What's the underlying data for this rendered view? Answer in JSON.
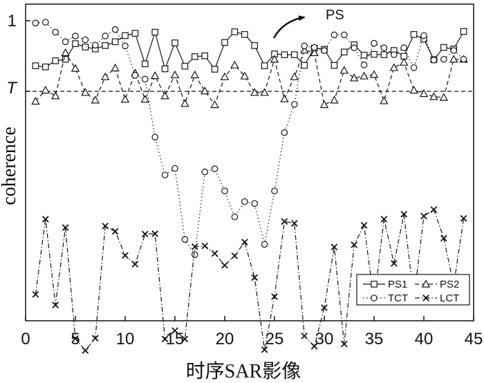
{
  "chart_data": {
    "type": "line",
    "xlabel": "时序SAR影像",
    "ylabel": "coherence",
    "xlim": [
      0,
      45
    ],
    "xticks": [
      0,
      5,
      10,
      15,
      20,
      25,
      30,
      35,
      40,
      45
    ],
    "ytick_labels": {
      "one": "1",
      "threshold": "T"
    },
    "threshold": 0.815,
    "grid": false,
    "legend_position": "bottom-right",
    "annotation": {
      "text": "PS"
    },
    "series": [
      {
        "name": "PS1",
        "marker": "square",
        "linestyle": "solid",
        "x": [
          1,
          2,
          3,
          4,
          5,
          6,
          7,
          8,
          9,
          10,
          11,
          12,
          13,
          14,
          15,
          16,
          17,
          18,
          19,
          20,
          21,
          22,
          23,
          24,
          25,
          26,
          27,
          28,
          29,
          30,
          31,
          32,
          33,
          34,
          35,
          36,
          37,
          38,
          39,
          40,
          41,
          42,
          43,
          44
        ],
        "y": [
          0.882,
          0.879,
          0.895,
          0.899,
          0.94,
          0.931,
          0.926,
          0.935,
          0.945,
          0.961,
          0.967,
          0.887,
          0.97,
          0.874,
          0.942,
          0.881,
          0.906,
          0.908,
          0.873,
          0.943,
          0.971,
          0.964,
          0.935,
          0.882,
          0.913,
          0.911,
          0.911,
          0.883,
          0.928,
          0.925,
          0.883,
          0.918,
          0.937,
          0.91,
          0.912,
          0.911,
          0.922,
          0.907,
          0.964,
          0.952,
          0.898,
          0.93,
          0.926,
          0.972
        ]
      },
      {
        "name": "PS2",
        "marker": "triangle",
        "linestyle": "dashed",
        "x": [
          1,
          2,
          3,
          4,
          5,
          6,
          7,
          8,
          9,
          10,
          11,
          12,
          13,
          14,
          15,
          16,
          17,
          18,
          19,
          20,
          21,
          22,
          23,
          24,
          25,
          26,
          27,
          28,
          29,
          30,
          31,
          32,
          33,
          34,
          35,
          36,
          37,
          38,
          39,
          40,
          41,
          42,
          43,
          44
        ],
        "y": [
          0.789,
          0.818,
          0.803,
          0.916,
          0.875,
          0.812,
          0.792,
          0.853,
          0.876,
          0.794,
          0.863,
          0.794,
          0.856,
          0.803,
          0.858,
          0.783,
          0.858,
          0.816,
          0.78,
          0.853,
          0.884,
          0.855,
          0.812,
          0.812,
          0.899,
          0.795,
          0.853,
          0.923,
          0.916,
          0.78,
          0.792,
          0.87,
          0.85,
          0.855,
          0.859,
          0.79,
          0.877,
          0.891,
          0.818,
          0.809,
          0.801,
          0.799,
          0.899,
          0.899
        ]
      },
      {
        "name": "TCT",
        "marker": "circle",
        "linestyle": "dotted",
        "x": [
          1,
          2,
          3,
          4,
          5,
          6,
          7,
          8,
          9,
          10,
          11,
          12,
          13,
          14,
          15,
          16,
          17,
          18,
          19,
          20,
          21,
          22,
          23,
          24,
          25,
          26,
          27,
          28,
          29,
          30,
          31,
          32,
          33,
          34,
          35,
          36,
          37,
          38,
          39,
          40,
          41,
          42,
          43,
          44
        ],
        "y": [
          0.994,
          0.996,
          0.97,
          0.945,
          0.96,
          0.95,
          0.936,
          0.96,
          0.977,
          0.934,
          0.857,
          0.847,
          0.695,
          0.596,
          0.613,
          0.427,
          0.387,
          0.604,
          0.612,
          0.554,
          0.486,
          0.526,
          0.521,
          0.414,
          0.554,
          0.707,
          0.781,
          0.934,
          0.93,
          0.922,
          0.963,
          0.963,
          0.929,
          0.884,
          0.941,
          0.929,
          0.911,
          0.929,
          0.877,
          0.961,
          0.897,
          0.899,
          0.922,
          0.899
        ]
      },
      {
        "name": "LCT",
        "marker": "x",
        "linestyle": "dashdot",
        "x": [
          1,
          2,
          3,
          4,
          5,
          6,
          7,
          8,
          9,
          10,
          11,
          12,
          13,
          14,
          15,
          16,
          17,
          18,
          19,
          20,
          21,
          22,
          23,
          24,
          25,
          26,
          27,
          28,
          29,
          30,
          31,
          32,
          33,
          34,
          35,
          36,
          37,
          38,
          39,
          40,
          41,
          42,
          43,
          44
        ],
        "y": [
          0.283,
          0.48,
          0.255,
          0.458,
          0.167,
          0.136,
          0.168,
          0.462,
          0.448,
          0.385,
          0.362,
          0.441,
          0.442,
          0.166,
          0.188,
          0.166,
          0.408,
          0.41,
          0.39,
          0.359,
          0.384,
          0.42,
          0.327,
          0.138,
          0.277,
          0.474,
          0.469,
          0.174,
          0.147,
          0.248,
          0.407,
          0.153,
          0.413,
          0.464,
          0.264,
          0.48,
          0.364,
          0.493,
          0.271,
          0.488,
          0.505,
          0.43,
          0.307,
          0.482
        ]
      }
    ]
  }
}
